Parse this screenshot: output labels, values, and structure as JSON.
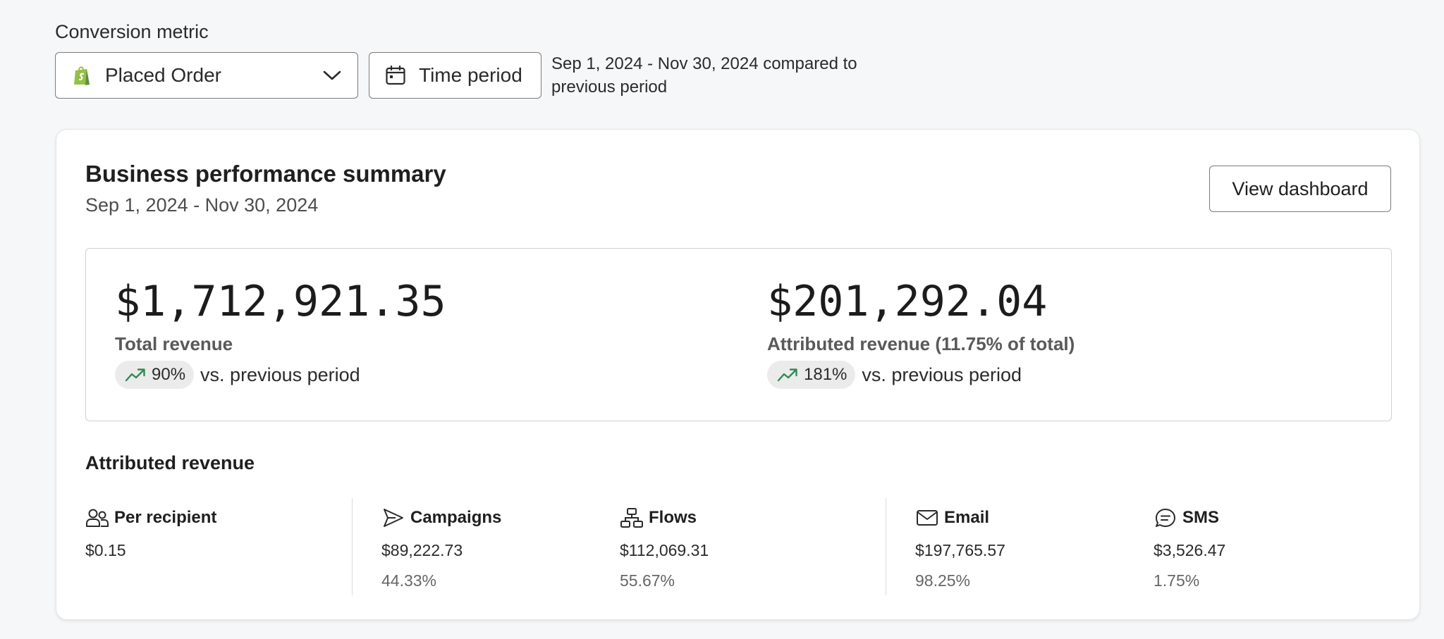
{
  "conversion": {
    "label": "Conversion metric",
    "selected_metric": "Placed Order",
    "time_period_button": "Time period",
    "period_description": "Sep 1, 2024 - Nov 30, 2024 compared to previous period"
  },
  "summary": {
    "title": "Business performance summary",
    "date_range": "Sep 1, 2024 - Nov 30, 2024",
    "view_dashboard_button": "View dashboard",
    "total_revenue": {
      "amount": "$1,712,921.35",
      "label": "Total revenue",
      "change": "90%",
      "comparison": "vs. previous period"
    },
    "attributed_revenue": {
      "amount": "$201,292.04",
      "label": "Attributed revenue (11.75% of total)",
      "change": "181%",
      "comparison": "vs. previous period"
    }
  },
  "attributed": {
    "heading": "Attributed revenue",
    "per_recipient": {
      "label": "Per recipient",
      "value": "$0.15",
      "icon": "recipients-icon"
    },
    "campaigns": {
      "label": "Campaigns",
      "value": "$89,222.73",
      "percent": "44.33%",
      "icon": "send-icon"
    },
    "flows": {
      "label": "Flows",
      "value": "$112,069.31",
      "percent": "55.67%",
      "icon": "flow-icon"
    },
    "email": {
      "label": "Email",
      "value": "$197,765.57",
      "percent": "98.25%",
      "icon": "mail-icon"
    },
    "sms": {
      "label": "SMS",
      "value": "$3,526.47",
      "percent": "1.75%",
      "icon": "chat-icon"
    }
  },
  "colors": {
    "trend_up": "#2e8b57",
    "shopify_green": "#7ab55c",
    "border": "#7b7b7b"
  }
}
